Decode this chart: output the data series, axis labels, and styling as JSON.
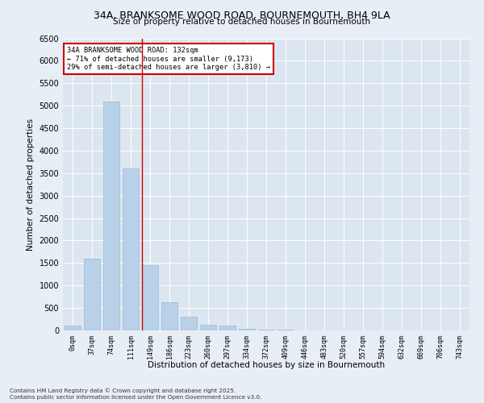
{
  "title": "34A, BRANKSOME WOOD ROAD, BOURNEMOUTH, BH4 9LA",
  "subtitle": "Size of property relative to detached houses in Bournemouth",
  "xlabel": "Distribution of detached houses by size in Bournemouth",
  "ylabel": "Number of detached properties",
  "bar_color": "#b8d0e8",
  "bar_edge_color": "#9ab8d4",
  "fig_bg_color": "#e8eef5",
  "axes_bg_color": "#dce6f0",
  "grid_color": "#ffffff",
  "categories": [
    "0sqm",
    "37sqm",
    "74sqm",
    "111sqm",
    "149sqm",
    "186sqm",
    "223sqm",
    "260sqm",
    "297sqm",
    "334sqm",
    "372sqm",
    "409sqm",
    "446sqm",
    "483sqm",
    "520sqm",
    "557sqm",
    "594sqm",
    "632sqm",
    "669sqm",
    "706sqm",
    "743sqm"
  ],
  "values": [
    100,
    1600,
    5100,
    3600,
    1450,
    620,
    300,
    130,
    100,
    30,
    20,
    10,
    5,
    3,
    2,
    1,
    1,
    0,
    0,
    0,
    0
  ],
  "ylim": [
    0,
    6500
  ],
  "yticks": [
    0,
    500,
    1000,
    1500,
    2000,
    2500,
    3000,
    3500,
    4000,
    4500,
    5000,
    5500,
    6000,
    6500
  ],
  "vline_x": 3.58,
  "vline_color": "#cc0000",
  "annotation_text": "34A BRANKSOME WOOD ROAD: 132sqm\n← 71% of detached houses are smaller (9,173)\n29% of semi-detached houses are larger (3,810) →",
  "annotation_box_color": "#cc0000",
  "footnote1": "Contains HM Land Registry data © Crown copyright and database right 2025.",
  "footnote2": "Contains public sector information licensed under the Open Government Licence v3.0."
}
